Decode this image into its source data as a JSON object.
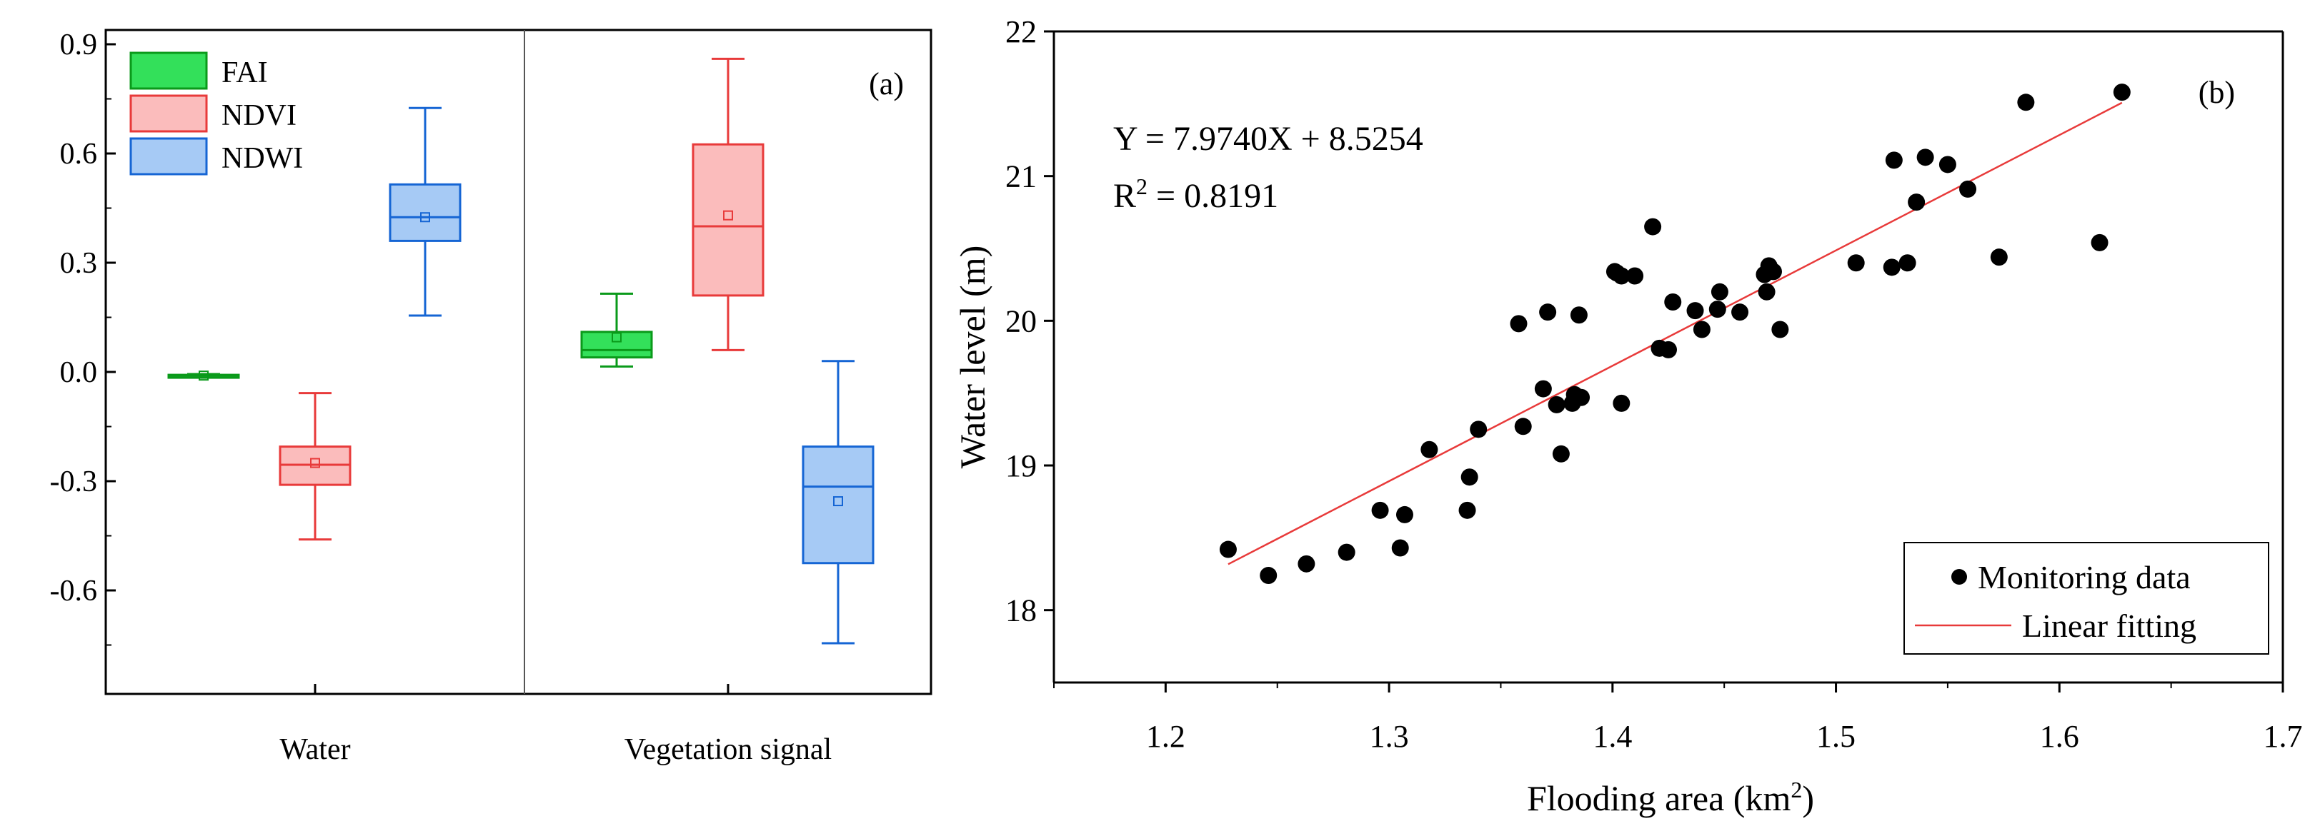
{
  "chart_data": [
    {
      "id": "a",
      "type": "box",
      "panel_label": "(a)",
      "categories": [
        "Water",
        "Vegetation signal"
      ],
      "ylim": [
        -0.9,
        0.9
      ],
      "yticks": [
        -0.6,
        -0.3,
        0.0,
        0.3,
        0.6,
        0.9
      ],
      "ytick_labels": [
        "-0.6",
        "-0.3",
        "0.0",
        "0.3",
        "0.6",
        "0.9"
      ],
      "legend_position": "top-left",
      "series": [
        {
          "name": "FAI",
          "stroke": "#0a9a1a",
          "fill": "#33e05a",
          "boxes": [
            {
              "category": "Water",
              "whisker_low": -0.015,
              "q1": -0.012,
              "median": -0.01,
              "q3": -0.008,
              "whisker_high": -0.006,
              "mean": -0.01
            },
            {
              "category": "Vegetation signal",
              "whisker_low": 0.015,
              "q1": 0.04,
              "median": 0.06,
              "q3": 0.11,
              "whisker_high": 0.215,
              "mean": 0.095
            }
          ]
        },
        {
          "name": "NDVI",
          "stroke": "#e83a3a",
          "fill": "#fbbcbc",
          "boxes": [
            {
              "category": "Water",
              "whisker_low": -0.46,
              "q1": -0.31,
              "median": -0.255,
              "q3": -0.205,
              "whisker_high": -0.058,
              "mean": -0.25
            },
            {
              "category": "Vegetation signal",
              "whisker_low": 0.06,
              "q1": 0.21,
              "median": 0.4,
              "q3": 0.625,
              "whisker_high": 0.86,
              "mean": 0.43
            }
          ]
        },
        {
          "name": "NDWI",
          "stroke": "#1565d4",
          "fill": "#a6caf5",
          "boxes": [
            {
              "category": "Water",
              "whisker_low": 0.155,
              "q1": 0.36,
              "median": 0.425,
              "q3": 0.515,
              "whisker_high": 0.725,
              "mean": 0.425
            },
            {
              "category": "Vegetation signal",
              "whisker_low": -0.745,
              "q1": -0.525,
              "median": -0.315,
              "q3": -0.205,
              "whisker_high": 0.03,
              "mean": -0.355
            }
          ]
        }
      ]
    },
    {
      "id": "b",
      "type": "scatter",
      "panel_label": "(b)",
      "xlabel_main": "Flooding area (km",
      "xlabel_sup": "2",
      "xlabel_end": ")",
      "ylabel": "Water level (m)",
      "xlim": [
        1.15,
        1.7
      ],
      "ylim": [
        17.5,
        22
      ],
      "xticks": [
        1.2,
        1.3,
        1.4,
        1.5,
        1.6,
        1.7
      ],
      "xtick_labels": [
        "1.2",
        "1.3",
        "1.4",
        "1.5",
        "1.6",
        "1.7"
      ],
      "yticks": [
        18,
        19,
        20,
        21,
        22
      ],
      "ytick_labels": [
        "18",
        "19",
        "20",
        "21",
        "22"
      ],
      "equation": "Y = 7.9740X + 8.5254",
      "r2_main": "R",
      "r2_sup": "2",
      "r2_value": " = 0.8191",
      "fit": {
        "slope": 7.974,
        "intercept": 8.5254,
        "x_range": [
          1.228,
          1.628
        ],
        "color": "#e83a3a"
      },
      "legend_position": "bottom-right",
      "legend": [
        "Monitoring data",
        "Linear fitting"
      ],
      "points": [
        [
          1.228,
          18.42
        ],
        [
          1.246,
          18.24
        ],
        [
          1.263,
          18.32
        ],
        [
          1.281,
          18.4
        ],
        [
          1.296,
          18.69
        ],
        [
          1.305,
          18.43
        ],
        [
          1.307,
          18.66
        ],
        [
          1.318,
          19.11
        ],
        [
          1.335,
          18.69
        ],
        [
          1.336,
          18.92
        ],
        [
          1.34,
          19.25
        ],
        [
          1.358,
          19.98
        ],
        [
          1.36,
          19.27
        ],
        [
          1.369,
          19.53
        ],
        [
          1.371,
          20.06
        ],
        [
          1.375,
          19.42
        ],
        [
          1.377,
          19.08
        ],
        [
          1.382,
          19.43
        ],
        [
          1.383,
          19.49
        ],
        [
          1.386,
          19.47
        ],
        [
          1.385,
          20.04
        ],
        [
          1.401,
          20.34
        ],
        [
          1.402,
          20.33
        ],
        [
          1.404,
          19.43
        ],
        [
          1.404,
          20.31
        ],
        [
          1.41,
          20.31
        ],
        [
          1.418,
          20.65
        ],
        [
          1.421,
          19.81
        ],
        [
          1.425,
          19.8
        ],
        [
          1.427,
          20.13
        ],
        [
          1.437,
          20.07
        ],
        [
          1.44,
          19.94
        ],
        [
          1.447,
          20.08
        ],
        [
          1.448,
          20.2
        ],
        [
          1.457,
          20.06
        ],
        [
          1.468,
          20.32
        ],
        [
          1.469,
          20.2
        ],
        [
          1.47,
          20.38
        ],
        [
          1.472,
          20.34
        ],
        [
          1.475,
          19.94
        ],
        [
          1.509,
          20.4
        ],
        [
          1.525,
          20.37
        ],
        [
          1.526,
          21.11
        ],
        [
          1.532,
          20.4
        ],
        [
          1.536,
          20.82
        ],
        [
          1.54,
          21.13
        ],
        [
          1.55,
          21.08
        ],
        [
          1.559,
          20.91
        ],
        [
          1.573,
          20.44
        ],
        [
          1.585,
          21.51
        ],
        [
          1.618,
          20.54
        ],
        [
          1.628,
          21.58
        ]
      ]
    }
  ]
}
